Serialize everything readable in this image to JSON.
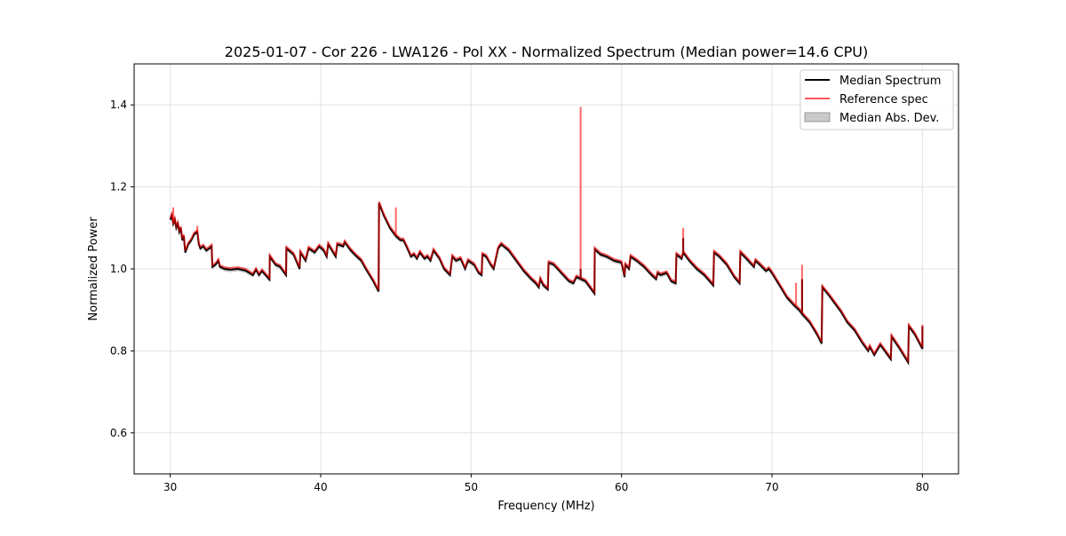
{
  "chart_data": {
    "type": "line",
    "title": "2025-01-07 - Cor 226 - LWA126 - Pol XX - Normalized Spectrum (Median power=14.6 CPU)",
    "xlabel": "Frequency (MHz)",
    "ylabel": "Normalized Power",
    "xlim": [
      27.6,
      82.4
    ],
    "ylim": [
      0.5,
      1.5
    ],
    "xticks": [
      30,
      40,
      50,
      60,
      70,
      80
    ],
    "yticks": [
      0.6,
      0.8,
      1.0,
      1.2,
      1.4
    ],
    "xtick_labels": [
      "30",
      "40",
      "50",
      "60",
      "70",
      "80"
    ],
    "ytick_labels": [
      "0.6",
      "0.8",
      "1.0",
      "1.2",
      "1.4"
    ],
    "grid": true,
    "legend_position": "top-right",
    "legend": [
      "Median Spectrum",
      "Reference spec",
      "Median Abs. Dev."
    ],
    "colors": {
      "median": "#000000",
      "reference": "#ff0000",
      "mad": "#bbbbbb"
    },
    "mad_halfwidth": 0.006,
    "median": [
      [
        30.0,
        1.12
      ],
      [
        30.1,
        1.13
      ],
      [
        30.2,
        1.11
      ],
      [
        30.3,
        1.12
      ],
      [
        30.4,
        1.1
      ],
      [
        30.5,
        1.11
      ],
      [
        30.6,
        1.09
      ],
      [
        30.7,
        1.1
      ],
      [
        30.8,
        1.07
      ],
      [
        30.9,
        1.08
      ],
      [
        31.0,
        1.04
      ],
      [
        31.2,
        1.06
      ],
      [
        31.4,
        1.07
      ],
      [
        31.6,
        1.085
      ],
      [
        31.8,
        1.09
      ],
      [
        31.9,
        1.06
      ],
      [
        32.0,
        1.05
      ],
      [
        32.2,
        1.055
      ],
      [
        32.4,
        1.045
      ],
      [
        32.6,
        1.05
      ],
      [
        32.75,
        1.055
      ],
      [
        32.8,
        1.005
      ],
      [
        33.0,
        1.01
      ],
      [
        33.2,
        1.02
      ],
      [
        33.3,
        1.005
      ],
      [
        33.6,
        1.0
      ],
      [
        34.0,
        0.998
      ],
      [
        34.5,
        1.0
      ],
      [
        35.0,
        0.996
      ],
      [
        35.5,
        0.985
      ],
      [
        35.7,
        0.998
      ],
      [
        35.9,
        0.985
      ],
      [
        36.1,
        0.995
      ],
      [
        36.6,
        0.974
      ],
      [
        36.62,
        1.03
      ],
      [
        37.0,
        1.01
      ],
      [
        37.3,
        1.005
      ],
      [
        37.7,
        0.985
      ],
      [
        37.72,
        1.05
      ],
      [
        38.2,
        1.035
      ],
      [
        38.6,
        1.0
      ],
      [
        38.65,
        1.04
      ],
      [
        39.0,
        1.02
      ],
      [
        39.2,
        1.05
      ],
      [
        39.6,
        1.04
      ],
      [
        39.9,
        1.055
      ],
      [
        40.2,
        1.045
      ],
      [
        40.4,
        1.03
      ],
      [
        40.5,
        1.06
      ],
      [
        41.0,
        1.03
      ],
      [
        41.1,
        1.06
      ],
      [
        41.5,
        1.055
      ],
      [
        41.6,
        1.065
      ],
      [
        42.0,
        1.045
      ],
      [
        42.4,
        1.03
      ],
      [
        42.7,
        1.02
      ],
      [
        43.0,
        1.0
      ],
      [
        43.5,
        0.97
      ],
      [
        43.85,
        0.945
      ],
      [
        43.88,
        1.16
      ],
      [
        44.2,
        1.13
      ],
      [
        44.6,
        1.1
      ],
      [
        45.0,
        1.08
      ],
      [
        45.3,
        1.07
      ],
      [
        45.5,
        1.07
      ],
      [
        45.7,
        1.055
      ],
      [
        46.0,
        1.03
      ],
      [
        46.2,
        1.035
      ],
      [
        46.4,
        1.025
      ],
      [
        46.6,
        1.04
      ],
      [
        46.9,
        1.025
      ],
      [
        47.1,
        1.03
      ],
      [
        47.3,
        1.02
      ],
      [
        47.5,
        1.045
      ],
      [
        47.9,
        1.025
      ],
      [
        48.2,
        1.0
      ],
      [
        48.6,
        0.985
      ],
      [
        48.75,
        1.03
      ],
      [
        49.0,
        1.02
      ],
      [
        49.3,
        1.025
      ],
      [
        49.6,
        1.0
      ],
      [
        49.8,
        1.02
      ],
      [
        50.2,
        1.01
      ],
      [
        50.5,
        0.99
      ],
      [
        50.7,
        0.985
      ],
      [
        50.75,
        1.035
      ],
      [
        51.0,
        1.03
      ],
      [
        51.3,
        1.01
      ],
      [
        51.5,
        1.0
      ],
      [
        51.8,
        1.05
      ],
      [
        52.0,
        1.06
      ],
      [
        52.5,
        1.045
      ],
      [
        53.0,
        1.02
      ],
      [
        53.5,
        0.995
      ],
      [
        54.0,
        0.975
      ],
      [
        54.3,
        0.965
      ],
      [
        54.5,
        0.955
      ],
      [
        54.6,
        0.975
      ],
      [
        54.8,
        0.96
      ],
      [
        55.1,
        0.95
      ],
      [
        55.15,
        1.015
      ],
      [
        55.5,
        1.01
      ],
      [
        56.0,
        0.99
      ],
      [
        56.5,
        0.97
      ],
      [
        56.8,
        0.965
      ],
      [
        57.0,
        0.98
      ],
      [
        57.3,
        0.975
      ],
      [
        57.6,
        0.97
      ],
      [
        58.2,
        0.94
      ],
      [
        58.22,
        1.048
      ],
      [
        58.6,
        1.035
      ],
      [
        59.0,
        1.03
      ],
      [
        59.5,
        1.02
      ],
      [
        60.0,
        1.015
      ],
      [
        60.2,
        0.98
      ],
      [
        60.25,
        1.01
      ],
      [
        60.5,
        1.0
      ],
      [
        60.6,
        1.03
      ],
      [
        61.0,
        1.02
      ],
      [
        61.5,
        1.005
      ],
      [
        62.0,
        0.985
      ],
      [
        62.3,
        0.975
      ],
      [
        62.4,
        0.99
      ],
      [
        62.6,
        0.985
      ],
      [
        63.0,
        0.99
      ],
      [
        63.3,
        0.97
      ],
      [
        63.6,
        0.965
      ],
      [
        63.65,
        1.035
      ],
      [
        64.0,
        1.025
      ],
      [
        64.1,
        1.04
      ],
      [
        64.5,
        1.02
      ],
      [
        65.0,
        1.0
      ],
      [
        65.5,
        0.985
      ],
      [
        66.1,
        0.96
      ],
      [
        66.15,
        1.04
      ],
      [
        66.5,
        1.03
      ],
      [
        67.0,
        1.01
      ],
      [
        67.5,
        0.98
      ],
      [
        67.85,
        0.965
      ],
      [
        67.9,
        1.04
      ],
      [
        68.3,
        1.025
      ],
      [
        68.8,
        1.005
      ],
      [
        68.9,
        1.02
      ],
      [
        69.2,
        1.01
      ],
      [
        69.6,
        0.995
      ],
      [
        69.8,
        1.0
      ],
      [
        70.0,
        0.99
      ],
      [
        70.5,
        0.96
      ],
      [
        71.0,
        0.93
      ],
      [
        71.5,
        0.91
      ],
      [
        71.8,
        0.9
      ],
      [
        72.0,
        0.89
      ],
      [
        72.5,
        0.87
      ],
      [
        73.0,
        0.84
      ],
      [
        73.3,
        0.818
      ],
      [
        73.35,
        0.955
      ],
      [
        73.8,
        0.935
      ],
      [
        74.2,
        0.915
      ],
      [
        74.6,
        0.895
      ],
      [
        75.0,
        0.87
      ],
      [
        75.5,
        0.85
      ],
      [
        76.0,
        0.82
      ],
      [
        76.4,
        0.8
      ],
      [
        76.5,
        0.81
      ],
      [
        76.8,
        0.79
      ],
      [
        77.2,
        0.815
      ],
      [
        77.5,
        0.8
      ],
      [
        77.9,
        0.78
      ],
      [
        77.95,
        0.835
      ],
      [
        78.5,
        0.805
      ],
      [
        79.05,
        0.772
      ],
      [
        79.1,
        0.86
      ],
      [
        79.5,
        0.84
      ],
      [
        80.0,
        0.805
      ],
      [
        80.0,
        0.86
      ]
    ],
    "reference_spikes": [
      [
        30.2,
        1.15
      ],
      [
        31.8,
        1.105
      ],
      [
        45.0,
        1.15
      ],
      [
        57.28,
        1.395
      ],
      [
        64.1,
        1.1
      ],
      [
        71.6,
        0.966
      ],
      [
        72.0,
        1.01
      ]
    ],
    "median_spikes": [
      [
        57.28,
        1.0
      ],
      [
        64.1,
        1.075
      ],
      [
        72.0,
        0.975
      ]
    ]
  }
}
